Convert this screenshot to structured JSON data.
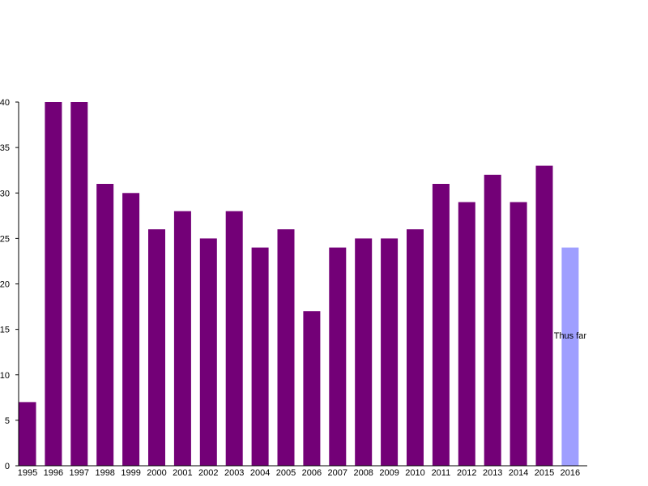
{
  "chart_data": {
    "type": "bar",
    "categories": [
      "1995",
      "1996",
      "1997",
      "1998",
      "1999",
      "2000",
      "2001",
      "2002",
      "2003",
      "2004",
      "2005",
      "2006",
      "2007",
      "2008",
      "2009",
      "2010",
      "2011",
      "2012",
      "2013",
      "2014",
      "2015",
      "2016"
    ],
    "values": [
      7,
      40,
      40,
      31,
      30,
      26,
      28,
      25,
      28,
      24,
      26,
      17,
      24,
      25,
      25,
      26,
      31,
      29,
      32,
      29,
      33,
      24
    ],
    "ylim": [
      0,
      40
    ],
    "yticks": [
      0,
      5,
      10,
      15,
      20,
      25,
      30,
      35,
      40
    ],
    "grid": false,
    "bar_color": "#730077",
    "highlight": {
      "category": "2016",
      "color": "#9f9fff",
      "annotation": "Thus far"
    }
  }
}
